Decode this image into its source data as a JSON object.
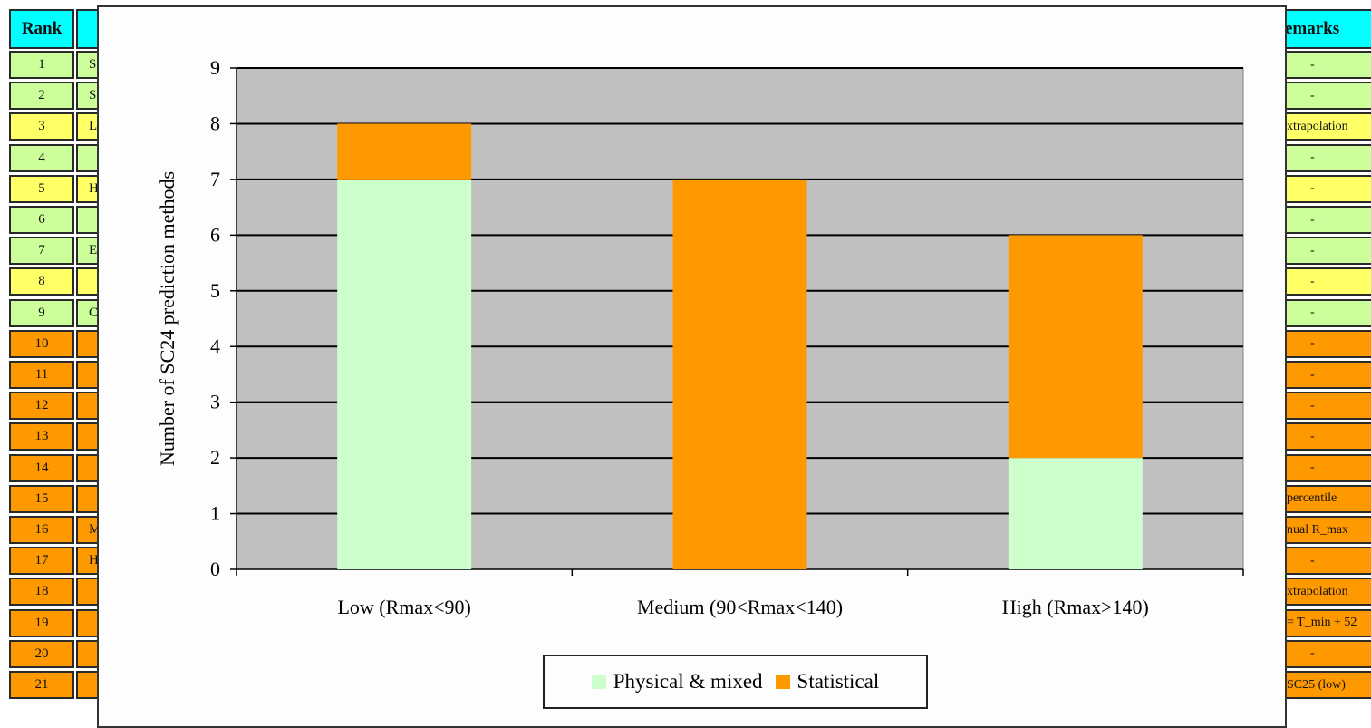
{
  "left_table": {
    "header": "Rank",
    "rows": [
      {
        "rank": "1",
        "name": "S",
        "color": "#ccff99"
      },
      {
        "rank": "2",
        "name": "S",
        "color": "#ccff99"
      },
      {
        "rank": "3",
        "name": "L",
        "color": "#ffff66"
      },
      {
        "rank": "4",
        "name": "",
        "color": "#ccff99"
      },
      {
        "rank": "5",
        "name": "H",
        "color": "#ffff66"
      },
      {
        "rank": "6",
        "name": "",
        "color": "#ccff99"
      },
      {
        "rank": "7",
        "name": "E",
        "color": "#ccff99"
      },
      {
        "rank": "8",
        "name": "",
        "color": "#ffff66"
      },
      {
        "rank": "9",
        "name": "C",
        "color": "#ccff99"
      },
      {
        "rank": "10",
        "name": "",
        "color": "#ff9900"
      },
      {
        "rank": "11",
        "name": "",
        "color": "#ff9900"
      },
      {
        "rank": "12",
        "name": "",
        "color": "#ff9900"
      },
      {
        "rank": "13",
        "name": "",
        "color": "#ff9900"
      },
      {
        "rank": "14",
        "name": "",
        "color": "#ff9900"
      },
      {
        "rank": "15",
        "name": "",
        "color": "#ff9900"
      },
      {
        "rank": "16",
        "name": "M",
        "color": "#ff9900"
      },
      {
        "rank": "17",
        "name": "H",
        "color": "#ff9900"
      },
      {
        "rank": "18",
        "name": "",
        "color": "#ff9900"
      },
      {
        "rank": "19",
        "name": "",
        "color": "#ff9900"
      },
      {
        "rank": "20",
        "name": "",
        "color": "#ff9900"
      },
      {
        "rank": "21",
        "name": "",
        "color": "#ff9900"
      }
    ]
  },
  "right_table": {
    "header": "emarks",
    "rows": [
      {
        "text": "-",
        "color": "#ccff99",
        "align": "center"
      },
      {
        "text": "-",
        "color": "#ccff99",
        "align": "center"
      },
      {
        "text": "xtrapolation",
        "color": "#ffff66",
        "align": "left"
      },
      {
        "text": "-",
        "color": "#ccff99",
        "align": "center"
      },
      {
        "text": "-",
        "color": "#ffff66",
        "align": "center"
      },
      {
        "text": "-",
        "color": "#ccff99",
        "align": "center"
      },
      {
        "text": "-",
        "color": "#ccff99",
        "align": "center"
      },
      {
        "text": "-",
        "color": "#ffff66",
        "align": "center"
      },
      {
        "text": "-",
        "color": "#ccff99",
        "align": "center"
      },
      {
        "text": "-",
        "color": "#ff9900",
        "align": "center"
      },
      {
        "text": "-",
        "color": "#ff9900",
        "align": "center"
      },
      {
        "text": "-",
        "color": "#ff9900",
        "align": "center"
      },
      {
        "text": "-",
        "color": "#ff9900",
        "align": "center"
      },
      {
        "text": "-",
        "color": "#ff9900",
        "align": "center"
      },
      {
        "text": "percentile",
        "color": "#ff9900",
        "align": "left"
      },
      {
        "text": "nual R_max",
        "color": "#ff9900",
        "align": "left"
      },
      {
        "text": "-",
        "color": "#ff9900",
        "align": "center"
      },
      {
        "text": "xtrapolation",
        "color": "#ff9900",
        "align": "left"
      },
      {
        "text": "= T_min + 52",
        "color": "#ff9900",
        "align": "left"
      },
      {
        "text": "-",
        "color": "#ff9900",
        "align": "center"
      },
      {
        "text": "SC25 (low)",
        "color": "#ff9900",
        "align": "left"
      }
    ]
  },
  "chart_data": {
    "type": "bar",
    "stacked": true,
    "title": "",
    "xlabel": "",
    "ylabel": "Number of SC24 prediction methods",
    "ylim": [
      0,
      9
    ],
    "yticks": [
      "0",
      "1",
      "2",
      "3",
      "4",
      "5",
      "6",
      "7",
      "8",
      "9"
    ],
    "categories": [
      "Low (Rmax<90)",
      "Medium (90<Rmax<140)",
      "High (Rmax>140)"
    ],
    "series": [
      {
        "name": "Physical & mixed",
        "values": [
          7,
          0,
          2
        ],
        "color": "#ccffcc"
      },
      {
        "name": "Statistical",
        "values": [
          1,
          7,
          4
        ],
        "color": "#ff9900"
      }
    ],
    "plot_background": "#c0c0c0",
    "grid": true,
    "legend": "bottom"
  }
}
